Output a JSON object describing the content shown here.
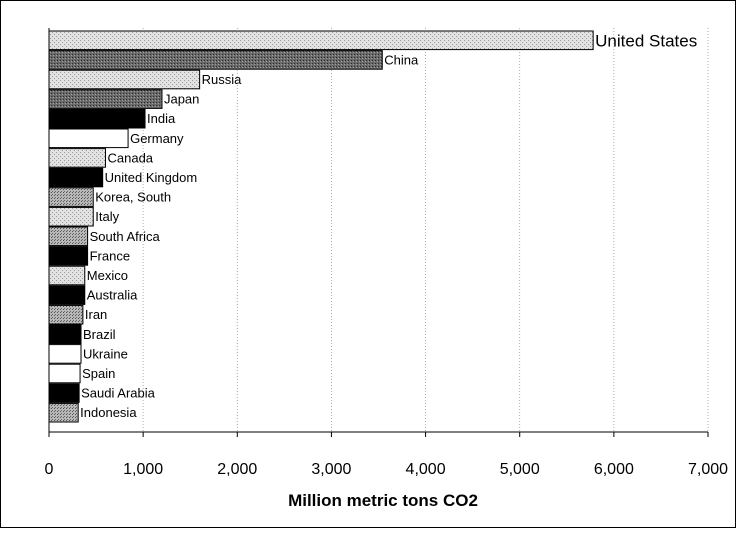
{
  "chart_data": {
    "type": "bar",
    "orientation": "horizontal",
    "categories": [
      "United States",
      "China",
      "Russia",
      "Japan",
      "India",
      "Germany",
      "Canada",
      "United Kingdom",
      "Korea, South",
      "Italy",
      "South Africa",
      "France",
      "Mexico",
      "Australia",
      "Iran",
      "Brazil",
      "Ukraine",
      "Spain",
      "Saudi Arabia",
      "Indonesia"
    ],
    "values": [
      5780,
      3540,
      1600,
      1200,
      1020,
      840,
      600,
      570,
      470,
      470,
      410,
      410,
      380,
      380,
      360,
      340,
      340,
      330,
      320,
      310
    ],
    "fills": [
      "light",
      "dark",
      "light",
      "dark",
      "black",
      "white",
      "light",
      "black",
      "medium",
      "light",
      "medium",
      "black",
      "light",
      "black",
      "medium",
      "black",
      "white",
      "white",
      "black",
      "medium"
    ],
    "title": "",
    "xlabel": "Million metric tons CO2",
    "ylabel": "",
    "xlim": [
      0,
      7000
    ],
    "xticks": [
      "0",
      "1,000",
      "2,000",
      "3,000",
      "4,000",
      "5,000",
      "6,000",
      "7,000"
    ],
    "grid": "vertical",
    "legend": "none"
  }
}
